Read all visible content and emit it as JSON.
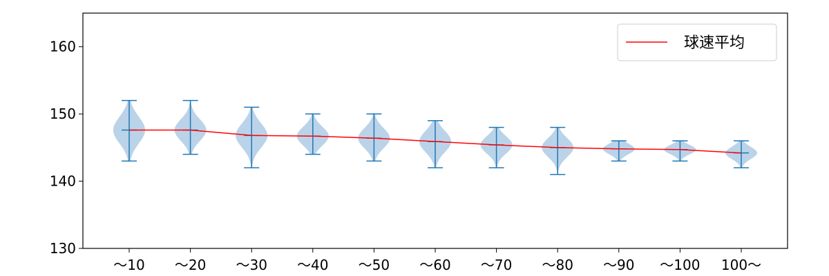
{
  "chart_data": {
    "type": "violin",
    "title": "",
    "xlabel": "",
    "ylabel": "",
    "ylim": [
      130,
      165
    ],
    "yticks": [
      130,
      140,
      150,
      160
    ],
    "categories": [
      "～10",
      "～20",
      "～30",
      "～40",
      "～50",
      "～60",
      "～70",
      "～80",
      "～90",
      "～100",
      "100～"
    ],
    "distributions": [
      {
        "min": 143,
        "max": 152,
        "mean": 147.6,
        "spread": 2.0
      },
      {
        "min": 144,
        "max": 152,
        "mean": 147.6,
        "spread": 1.6
      },
      {
        "min": 142,
        "max": 151,
        "mean": 146.8,
        "spread": 1.8
      },
      {
        "min": 144,
        "max": 150,
        "mean": 146.7,
        "spread": 1.4
      },
      {
        "min": 143,
        "max": 150,
        "mean": 146.4,
        "spread": 1.5
      },
      {
        "min": 142,
        "max": 149,
        "mean": 145.9,
        "spread": 1.6
      },
      {
        "min": 142,
        "max": 148,
        "mean": 145.4,
        "spread": 1.3
      },
      {
        "min": 141,
        "max": 148,
        "mean": 145.0,
        "spread": 1.4
      },
      {
        "min": 143,
        "max": 146,
        "mean": 144.8,
        "spread": 0.8
      },
      {
        "min": 143,
        "max": 146,
        "mean": 144.7,
        "spread": 0.7
      },
      {
        "min": 142,
        "max": 146,
        "mean": 144.2,
        "spread": 0.9
      }
    ],
    "series": [
      {
        "name": "球速平均",
        "values": [
          147.6,
          147.6,
          146.8,
          146.7,
          146.4,
          145.9,
          145.4,
          145.0,
          144.8,
          144.7,
          144.2
        ]
      }
    ],
    "grid": false,
    "legend_position": "top-right",
    "colors": {
      "violin_fill": "#a9c8e3",
      "violin_line": "#1f77b4",
      "mean_line": "#ff0000",
      "axis": "#000000"
    }
  }
}
